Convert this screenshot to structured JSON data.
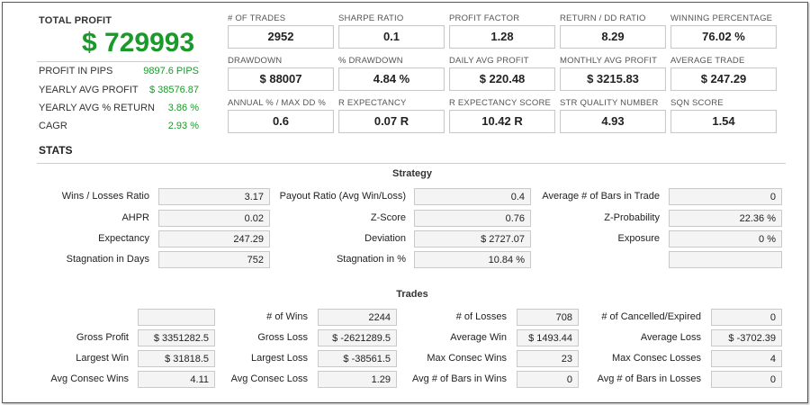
{
  "summary": {
    "total_profit_label": "TOTAL PROFIT",
    "total_profit_value": "$ 729993",
    "rows": [
      {
        "label": "PROFIT IN PIPS",
        "value": "9897.6 PIPS"
      },
      {
        "label": "YEARLY AVG PROFIT",
        "value": "$ 38576.87"
      },
      {
        "label": "YEARLY AVG % RETURN",
        "value": "3.86 %"
      },
      {
        "label": "CAGR",
        "value": "2.93 %"
      }
    ]
  },
  "metrics": [
    {
      "label": "# OF TRADES",
      "value": "2952"
    },
    {
      "label": "SHARPE RATIO",
      "value": "0.1"
    },
    {
      "label": "PROFIT FACTOR",
      "value": "1.28"
    },
    {
      "label": "RETURN / DD RATIO",
      "value": "8.29"
    },
    {
      "label": "WINNING PERCENTAGE",
      "value": "76.02 %"
    },
    {
      "label": "DRAWDOWN",
      "value": "$ 88007"
    },
    {
      "label": "% DRAWDOWN",
      "value": "4.84 %"
    },
    {
      "label": "DAILY AVG PROFIT",
      "value": "$ 220.48"
    },
    {
      "label": "MONTHLY AVG PROFIT",
      "value": "$ 3215.83"
    },
    {
      "label": "AVERAGE TRADE",
      "value": "$ 247.29"
    },
    {
      "label": "ANNUAL % / MAX DD %",
      "value": "0.6"
    },
    {
      "label": "R EXPECTANCY",
      "value": "0.07 R"
    },
    {
      "label": "R EXPECTANCY SCORE",
      "value": "10.42 R"
    },
    {
      "label": "STR QUALITY NUMBER",
      "value": "4.93"
    },
    {
      "label": "SQN SCORE",
      "value": "1.54"
    }
  ],
  "stats": {
    "title": "STATS",
    "strategy": {
      "title": "Strategy",
      "rows": [
        [
          {
            "label": "Wins / Losses Ratio",
            "value": "3.17"
          },
          {
            "label": "Payout Ratio (Avg Win/Loss)",
            "value": "0.4"
          },
          {
            "label": "Average # of Bars in Trade",
            "value": "0"
          }
        ],
        [
          {
            "label": "AHPR",
            "value": "0.02"
          },
          {
            "label": "Z-Score",
            "value": "0.76"
          },
          {
            "label": "Z-Probability",
            "value": "22.36 %"
          }
        ],
        [
          {
            "label": "Expectancy",
            "value": "247.29"
          },
          {
            "label": "Deviation",
            "value": "$ 2727.07"
          },
          {
            "label": "Exposure",
            "value": "0 %"
          }
        ],
        [
          {
            "label": "Stagnation in Days",
            "value": "752"
          },
          {
            "label": "Stagnation in %",
            "value": "10.84 %"
          },
          {
            "label": "",
            "value": ""
          }
        ]
      ]
    },
    "trades": {
      "title": "Trades",
      "rows": [
        [
          {
            "label": "",
            "value": ""
          },
          {
            "label": "# of Wins",
            "value": "2244"
          },
          {
            "label": "# of Losses",
            "value": "708"
          },
          {
            "label": "# of Cancelled/Expired",
            "value": "0"
          }
        ],
        [
          {
            "label": "Gross Profit",
            "value": "$ 3351282.5"
          },
          {
            "label": "Gross Loss",
            "value": "$ -2621289.5"
          },
          {
            "label": "Average Win",
            "value": "$ 1493.44"
          },
          {
            "label": "Average Loss",
            "value": "$ -3702.39"
          }
        ],
        [
          {
            "label": "Largest Win",
            "value": "$ 31818.5"
          },
          {
            "label": "Largest Loss",
            "value": "$ -38561.5"
          },
          {
            "label": "Max Consec Wins",
            "value": "23"
          },
          {
            "label": "Max Consec Losses",
            "value": "4"
          }
        ],
        [
          {
            "label": "Avg Consec Wins",
            "value": "4.11"
          },
          {
            "label": "Avg Consec Loss",
            "value": "1.29"
          },
          {
            "label": "Avg # of Bars in Wins",
            "value": "0"
          },
          {
            "label": "Avg # of Bars in Losses",
            "value": "0"
          }
        ]
      ]
    }
  },
  "colors": {
    "profit_green": "#1a9a2a"
  }
}
